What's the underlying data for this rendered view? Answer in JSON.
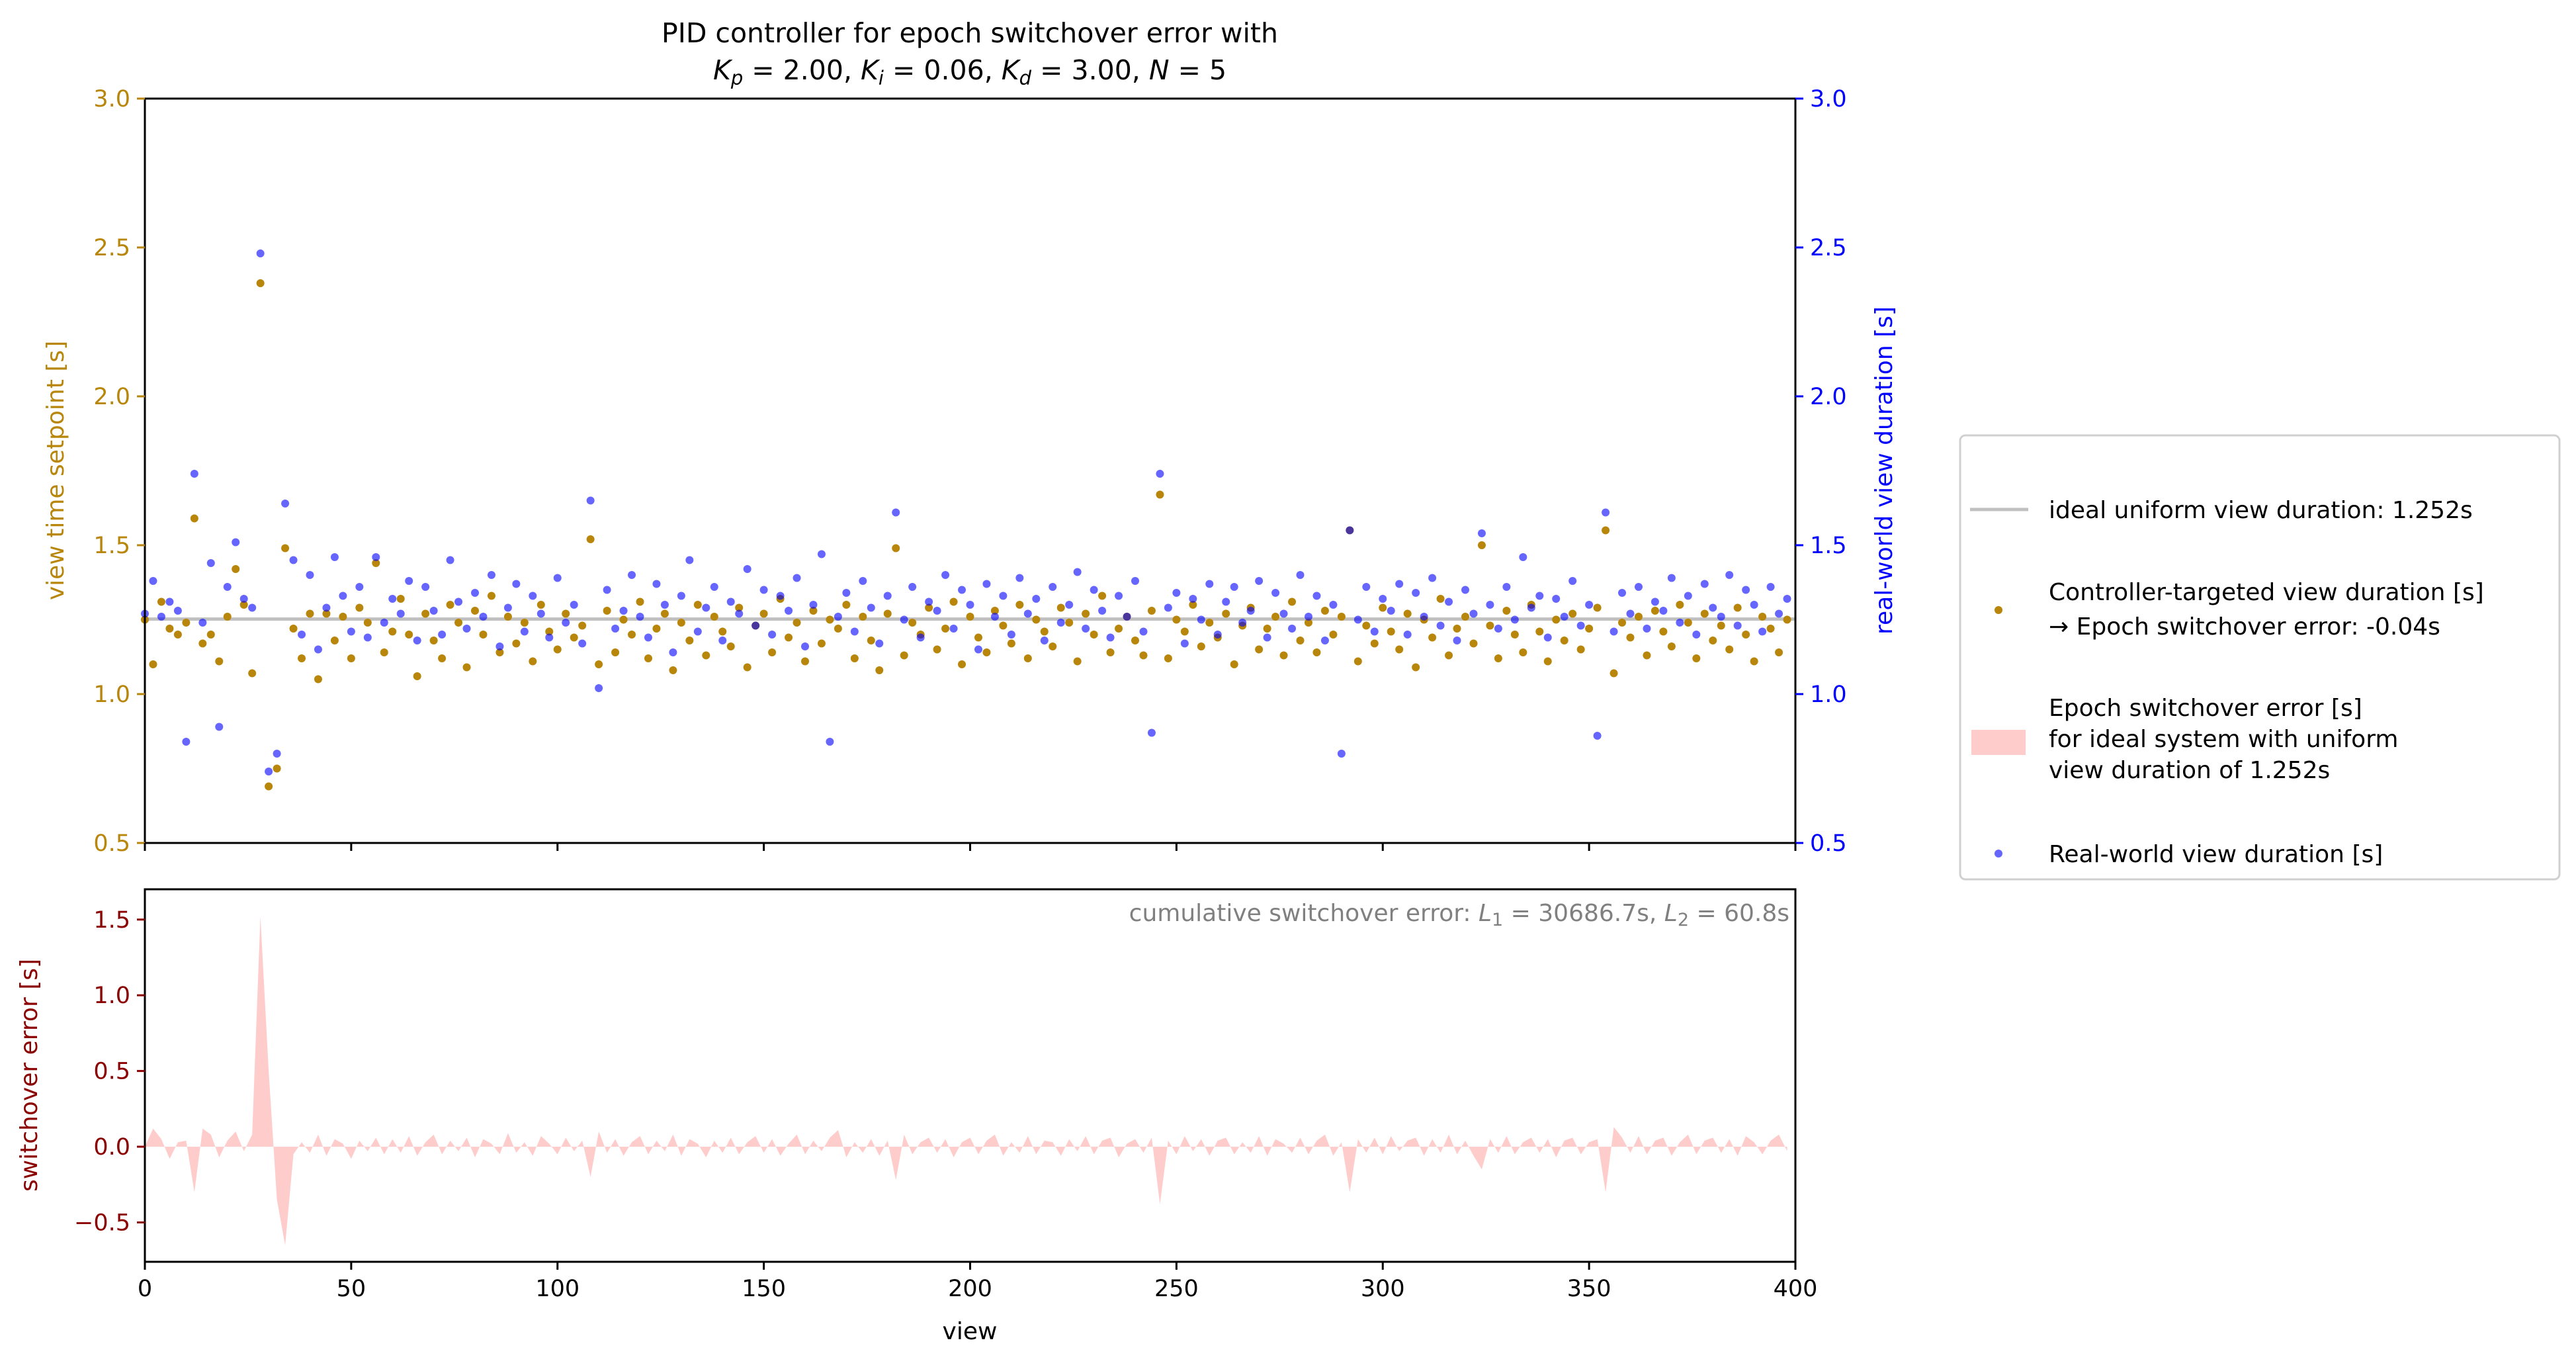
{
  "chart_data": [
    {
      "type": "scatter",
      "title": {
        "line1": "PID controller for epoch switchover error with",
        "params": [
          {
            "sym": "K",
            "sub": "p",
            "val": "2.00"
          },
          {
            "sym": "K",
            "sub": "i",
            "val": "0.06"
          },
          {
            "sym": "K",
            "sub": "d",
            "val": "3.00"
          },
          {
            "sym": "N",
            "sub": "",
            "val": "5"
          }
        ]
      },
      "xlabel": "",
      "ylabel_left": "view time setpoint [s]",
      "ylabel_right": "real-world view duration [s]",
      "xlim": [
        0,
        400
      ],
      "ylim": [
        0.5,
        3.0
      ],
      "yticks": [
        "0.5",
        "1.0",
        "1.5",
        "2.0",
        "2.5",
        "3.0"
      ],
      "xticks": [
        0,
        50,
        100,
        150,
        200,
        250,
        300,
        350,
        400
      ],
      "ideal_value": 1.252,
      "x_step": 2,
      "series": [
        {
          "name": "Controller-targeted view duration [s]",
          "color": "#b8860b",
          "values": [
            1.25,
            1.1,
            1.31,
            1.22,
            1.2,
            1.24,
            1.59,
            1.17,
            1.2,
            1.11,
            1.26,
            1.42,
            1.3,
            1.07,
            2.38,
            0.69,
            0.75,
            1.49,
            1.22,
            1.12,
            1.27,
            1.05,
            1.27,
            1.18,
            1.26,
            1.12,
            1.29,
            1.24,
            1.44,
            1.14,
            1.21,
            1.32,
            1.2,
            1.06,
            1.27,
            1.18,
            1.12,
            1.3,
            1.24,
            1.09,
            1.28,
            1.2,
            1.33,
            1.14,
            1.26,
            1.17,
            1.24,
            1.11,
            1.3,
            1.21,
            1.15,
            1.27,
            1.19,
            1.23,
            1.52,
            1.1,
            1.28,
            1.14,
            1.25,
            1.2,
            1.31,
            1.12,
            1.22,
            1.27,
            1.08,
            1.24,
            1.18,
            1.3,
            1.13,
            1.26,
            1.21,
            1.16,
            1.29,
            1.09,
            1.23,
            1.27,
            1.14,
            1.32,
            1.19,
            1.24,
            1.11,
            1.28,
            1.17,
            1.25,
            1.22,
            1.3,
            1.12,
            1.26,
            1.18,
            1.08,
            1.27,
            1.49,
            1.13,
            1.24,
            1.2,
            1.29,
            1.15,
            1.22,
            1.31,
            1.1,
            1.26,
            1.19,
            1.14,
            1.28,
            1.23,
            1.17,
            1.3,
            1.12,
            1.25,
            1.21,
            1.16,
            1.29,
            1.24,
            1.11,
            1.27,
            1.2,
            1.33,
            1.14,
            1.22,
            1.26,
            1.18,
            1.13,
            1.28,
            1.67,
            1.12,
            1.25,
            1.21,
            1.3,
            1.16,
            1.24,
            1.19,
            1.27,
            1.1,
            1.23,
            1.29,
            1.15,
            1.22,
            1.26,
            1.13,
            1.31,
            1.18,
            1.24,
            1.14,
            1.28,
            1.2,
            1.26,
            1.55,
            1.11,
            1.23,
            1.17,
            1.29,
            1.21,
            1.15,
            1.27,
            1.09,
            1.25,
            1.19,
            1.32,
            1.13,
            1.22,
            1.26,
            1.17,
            1.5,
            1.23,
            1.12,
            1.28,
            1.2,
            1.14,
            1.3,
            1.21,
            1.11,
            1.25,
            1.18,
            1.27,
            1.15,
            1.22,
            1.29,
            1.55,
            1.07,
            1.24,
            1.19,
            1.26,
            1.13,
            1.28,
            1.21,
            1.16,
            1.3,
            1.24,
            1.12,
            1.27,
            1.18,
            1.23,
            1.15,
            1.29,
            1.2,
            1.11,
            1.26,
            1.22,
            1.14,
            1.25
          ]
        },
        {
          "name": "Real-world view duration [s]",
          "color": "#0000ff",
          "values": [
            1.27,
            1.38,
            1.26,
            1.31,
            1.28,
            0.84,
            1.74,
            1.24,
            1.44,
            0.89,
            1.36,
            1.51,
            1.32,
            1.29,
            2.48,
            0.74,
            0.8,
            1.64,
            1.45,
            1.2,
            1.4,
            1.15,
            1.29,
            1.46,
            1.33,
            1.21,
            1.36,
            1.19,
            1.46,
            1.24,
            1.32,
            1.27,
            1.38,
            1.18,
            1.36,
            1.28,
            1.2,
            1.45,
            1.31,
            1.22,
            1.34,
            1.26,
            1.4,
            1.16,
            1.29,
            1.37,
            1.21,
            1.33,
            1.27,
            1.19,
            1.39,
            1.24,
            1.3,
            1.17,
            1.65,
            1.02,
            1.35,
            1.22,
            1.28,
            1.4,
            1.26,
            1.19,
            1.37,
            1.3,
            1.14,
            1.33,
            1.45,
            1.21,
            1.29,
            1.36,
            1.18,
            1.31,
            1.27,
            1.42,
            1.23,
            1.35,
            1.2,
            1.33,
            1.28,
            1.39,
            1.16,
            1.3,
            1.47,
            0.84,
            1.26,
            1.34,
            1.21,
            1.38,
            1.29,
            1.17,
            1.33,
            1.61,
            1.25,
            1.36,
            1.19,
            1.31,
            1.28,
            1.4,
            1.22,
            1.35,
            1.3,
            1.15,
            1.37,
            1.26,
            1.33,
            1.2,
            1.39,
            1.27,
            1.32,
            1.18,
            1.36,
            1.24,
            1.3,
            1.41,
            1.22,
            1.35,
            1.28,
            1.19,
            1.33,
            1.26,
            1.38,
            1.21,
            0.87,
            1.74,
            1.29,
            1.34,
            1.17,
            1.32,
            1.25,
            1.37,
            1.2,
            1.31,
            1.36,
            1.24,
            1.28,
            1.38,
            1.19,
            1.34,
            1.27,
            1.22,
            1.4,
            1.26,
            1.33,
            1.18,
            1.3,
            0.8,
            1.55,
            1.25,
            1.36,
            1.21,
            1.32,
            1.28,
            1.37,
            1.2,
            1.34,
            1.26,
            1.39,
            1.23,
            1.31,
            1.18,
            1.35,
            1.27,
            1.54,
            1.3,
            1.22,
            1.36,
            1.25,
            1.46,
            1.29,
            1.33,
            1.19,
            1.32,
            1.26,
            1.38,
            1.23,
            1.3,
            0.86,
            1.61,
            1.21,
            1.34,
            1.27,
            1.36,
            1.22,
            1.31,
            1.28,
            1.39,
            1.24,
            1.33,
            1.2,
            1.37,
            1.29,
            1.26,
            1.4,
            1.23,
            1.35,
            1.3,
            1.21,
            1.36,
            1.27,
            1.32
          ]
        }
      ]
    },
    {
      "type": "area",
      "ylabel": "switchover error [s]",
      "xlabel": "view",
      "xlim": [
        0,
        400
      ],
      "ylim": [
        -0.76,
        1.7
      ],
      "yticks": [
        "-0.5",
        "0.0",
        "0.5",
        "1.0",
        "1.5"
      ],
      "xticks": [
        "0",
        "50",
        "100",
        "150",
        "200",
        "250",
        "300",
        "350",
        "400"
      ],
      "x_step": 2,
      "color": "#ffcccc",
      "annotation": {
        "prefix": "cumulative switchover error: ",
        "l1_sym": "L",
        "l1_sub": "1",
        "l1_val": " = 30686.7s, ",
        "l2_sym": "L",
        "l2_sub": "2",
        "l2_val": " = 60.8s"
      },
      "values": [
        0.0,
        0.12,
        0.05,
        -0.08,
        0.03,
        0.04,
        -0.3,
        0.12,
        0.08,
        -0.07,
        0.04,
        0.1,
        -0.03,
        0.08,
        1.52,
        0.5,
        -0.35,
        -0.65,
        -0.05,
        0.03,
        -0.04,
        0.08,
        -0.06,
        0.05,
        0.02,
        -0.08,
        0.04,
        -0.03,
        0.06,
        -0.05,
        0.05,
        -0.04,
        0.07,
        -0.06,
        0.03,
        0.08,
        -0.05,
        0.04,
        -0.03,
        0.06,
        -0.07,
        0.05,
        0.02,
        -0.05,
        0.09,
        -0.04,
        0.03,
        -0.06,
        0.07,
        0.02,
        -0.05,
        0.06,
        -0.03,
        0.04,
        -0.2,
        0.1,
        -0.04,
        0.05,
        -0.06,
        0.03,
        0.07,
        -0.05,
        0.04,
        -0.03,
        0.08,
        -0.06,
        0.05,
        0.02,
        -0.07,
        0.04,
        -0.04,
        0.06,
        -0.05,
        0.03,
        0.07,
        -0.04,
        0.05,
        -0.06,
        0.02,
        0.08,
        -0.05,
        0.04,
        -0.03,
        0.06,
        0.11,
        -0.07,
        0.03,
        -0.04,
        0.05,
        -0.06,
        0.04,
        -0.22,
        0.08,
        -0.05,
        0.03,
        0.06,
        -0.04,
        0.05,
        -0.07,
        0.03,
        0.06,
        -0.05,
        0.04,
        0.08,
        -0.06,
        0.03,
        -0.04,
        0.07,
        -0.05,
        0.04,
        0.03,
        -0.06,
        0.05,
        -0.03,
        0.07,
        -0.05,
        0.04,
        0.06,
        -0.07,
        0.02,
        0.05,
        -0.04,
        0.06,
        -0.38,
        0.04,
        -0.05,
        0.07,
        -0.03,
        0.05,
        -0.06,
        0.04,
        0.06,
        -0.05,
        0.03,
        -0.04,
        0.07,
        -0.06,
        0.05,
        0.02,
        -0.04,
        0.06,
        -0.05,
        0.04,
        0.08,
        -0.06,
        0.03,
        -0.3,
        0.05,
        -0.04,
        0.06,
        -0.05,
        0.07,
        -0.03,
        0.04,
        0.06,
        -0.06,
        0.05,
        -0.04,
        0.08,
        -0.05,
        0.04,
        -0.06,
        -0.15,
        0.05,
        -0.04,
        0.07,
        -0.05,
        0.03,
        0.06,
        -0.04,
        0.05,
        -0.07,
        0.04,
        0.06,
        -0.05,
        0.03,
        0.05,
        -0.3,
        0.13,
        0.06,
        -0.04,
        0.07,
        -0.05,
        0.04,
        0.06,
        -0.06,
        0.03,
        0.08,
        -0.05,
        0.04,
        0.06,
        -0.04,
        0.05,
        -0.06,
        0.07,
        0.03,
        -0.05,
        0.04,
        0.08,
        -0.03
      ]
    }
  ],
  "legend": {
    "placement": "right",
    "ideal": "ideal uniform view duration: 1.252s",
    "controller_line1": "Controller-targeted view duration [s]",
    "controller_line2": "→ Epoch switchover error: -0.04s",
    "error_line1": "Epoch switchover error [s]",
    "error_line2": "for ideal system with uniform",
    "error_line3": "view duration of 1.252s",
    "real": "Real-world view duration [s]"
  },
  "colors": {
    "setpoint_axis": "#b8860b",
    "real_axis": "#0000ff",
    "error_axis": "#8b0000",
    "ideal_line": "#c0c0c0",
    "annotation": "#808080"
  }
}
